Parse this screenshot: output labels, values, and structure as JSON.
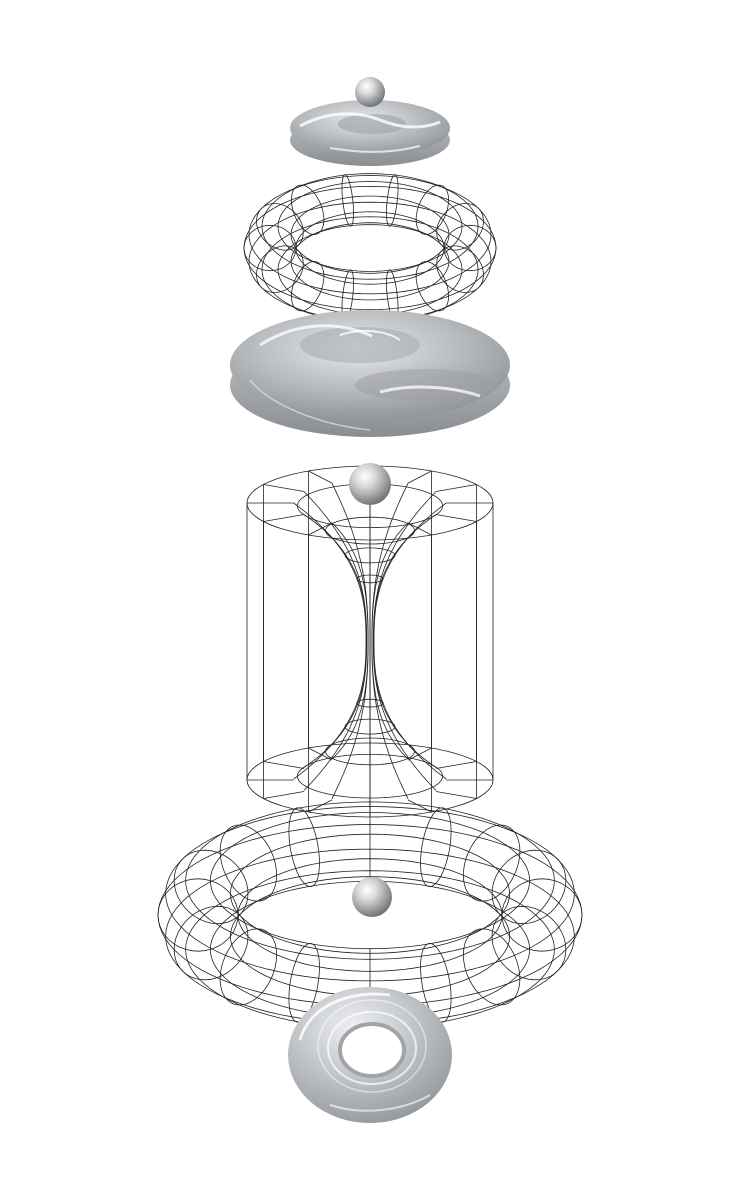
{
  "figure": {
    "background": "#ffffff",
    "line_color": "#222222",
    "surface_light": "#d4d6d8",
    "surface_mid": "#a9acaf",
    "surface_dark": "#7c7f83",
    "sphere_color": "#cfcfcf"
  },
  "components": [
    {
      "kind": "sphere",
      "style": "shaded"
    },
    {
      "kind": "dimpled-disc",
      "style": "shaded"
    },
    {
      "kind": "torus",
      "style": "wireframe"
    },
    {
      "kind": "dimpled-disc",
      "style": "shaded"
    },
    {
      "kind": "sphere",
      "style": "shaded"
    },
    {
      "kind": "wormhole-funnel-in-cylinder",
      "style": "wireframe"
    },
    {
      "kind": "torus",
      "style": "wireframe"
    },
    {
      "kind": "sphere",
      "style": "shaded"
    },
    {
      "kind": "ring-torus",
      "style": "shaded"
    }
  ]
}
